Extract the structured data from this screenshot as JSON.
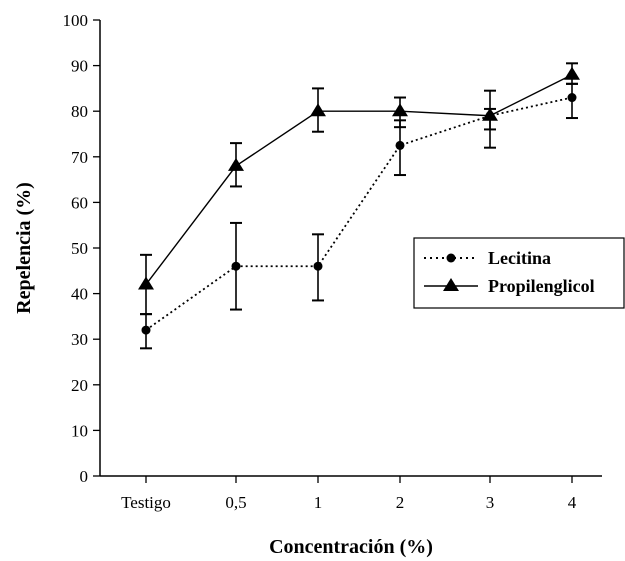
{
  "chart_data": {
    "type": "line",
    "title": "",
    "xlabel": "Concentración (%)",
    "ylabel": "Repelencia (%)",
    "categories": [
      "Testigo",
      "0,5",
      "1",
      "2",
      "3",
      "4"
    ],
    "ylim": [
      0,
      100
    ],
    "yticks": [
      0,
      10,
      20,
      30,
      40,
      50,
      60,
      70,
      80,
      90,
      100
    ],
    "grid": false,
    "legend_position": "right",
    "series": [
      {
        "name": "Lecitina",
        "marker": "circle",
        "line_style": "dotted",
        "values": [
          32,
          46,
          46,
          72.5,
          79,
          83
        ],
        "error_low": [
          28,
          36.5,
          38.5,
          66,
          72,
          78.5
        ],
        "error_high": [
          35.5,
          55.5,
          53,
          78,
          80.5,
          86
        ]
      },
      {
        "name": "Propilenglicol",
        "marker": "triangle",
        "line_style": "solid",
        "values": [
          42,
          68,
          80,
          80,
          79,
          88
        ],
        "error_low": [
          35.5,
          63.5,
          75.5,
          76.5,
          76,
          86
        ],
        "error_high": [
          48.5,
          73,
          85,
          83,
          84.5,
          90.5
        ]
      }
    ]
  }
}
